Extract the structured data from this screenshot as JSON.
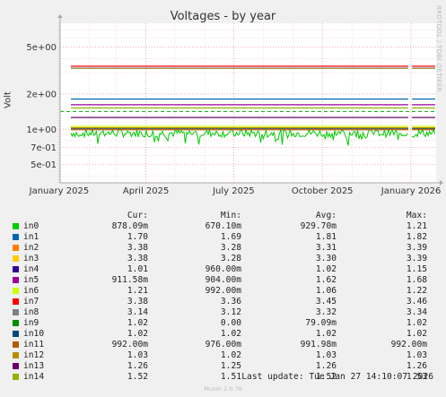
{
  "chart_data": {
    "type": "line",
    "title": "Voltages - by year",
    "ylabel": "Volt",
    "y_scale": "log",
    "yticks": [
      {
        "value": 5,
        "label": "5e+00"
      },
      {
        "value": 2,
        "label": "2e+00"
      },
      {
        "value": 1,
        "label": "1e+00"
      },
      {
        "value": 0.7,
        "label": "7e-01"
      },
      {
        "value": 0.5,
        "label": "5e-01"
      }
    ],
    "xticks": [
      "January 2025",
      "April 2025",
      "July 2025",
      "October 2025",
      "January 2026"
    ],
    "x_range": [
      "2025-01-02",
      "2026-01-27"
    ],
    "y_range": [
      0.35,
      8.0
    ],
    "gap_start": "2025-12-29",
    "gap_end": "2026-01-02",
    "warning_line": 1.42,
    "grid": true,
    "columns": [
      "Cur:",
      "Min:",
      "Avg:",
      "Max:"
    ],
    "series": [
      {
        "name": "in0",
        "color": "#00cc00",
        "cur": "878.09m",
        "min": "670.10m",
        "avg": "929.70m",
        "max": "1.21",
        "level": 0.93,
        "noisy": true
      },
      {
        "name": "in1",
        "color": "#0066b3",
        "cur": "1.70",
        "min": "1.69",
        "avg": "1.81",
        "max": "1.82",
        "level": 1.81
      },
      {
        "name": "in2",
        "color": "#ff8000",
        "cur": "3.38",
        "min": "3.28",
        "avg": "3.31",
        "max": "3.39",
        "level": 3.31
      },
      {
        "name": "in3",
        "color": "#ffcc00",
        "cur": "3.38",
        "min": "3.28",
        "avg": "3.30",
        "max": "3.39",
        "level": 3.3
      },
      {
        "name": "in4",
        "color": "#330099",
        "cur": "1.01",
        "min": "960.00m",
        "avg": "1.02",
        "max": "1.15",
        "level": 1.02
      },
      {
        "name": "in5",
        "color": "#990099",
        "cur": "911.58m",
        "min": "904.00m",
        "avg": "1.62",
        "max": "1.68",
        "level": 1.62
      },
      {
        "name": "in6",
        "color": "#ccff00",
        "cur": "1.21",
        "min": "992.00m",
        "avg": "1.06",
        "max": "1.22",
        "level": 1.06
      },
      {
        "name": "in7",
        "color": "#ff0000",
        "cur": "3.38",
        "min": "3.36",
        "avg": "3.45",
        "max": "3.46",
        "level": 3.45
      },
      {
        "name": "in8",
        "color": "#808080",
        "cur": "3.14",
        "min": "3.12",
        "avg": "3.32",
        "max": "3.34",
        "level": 3.32
      },
      {
        "name": "in9",
        "color": "#008f00",
        "cur": "1.02",
        "min": "0.00",
        "avg": "79.09m",
        "max": "1.02",
        "level": 1.02,
        "only_end": true
      },
      {
        "name": "in10",
        "color": "#00487d",
        "cur": "1.02",
        "min": "1.02",
        "avg": "1.02",
        "max": "1.02",
        "level": 1.02
      },
      {
        "name": "in11",
        "color": "#b35a00",
        "cur": "992.00m",
        "min": "976.00m",
        "avg": "991.98m",
        "max": "992.00m",
        "level": 0.992
      },
      {
        "name": "in12",
        "color": "#b38f00",
        "cur": "1.03",
        "min": "1.02",
        "avg": "1.03",
        "max": "1.03",
        "level": 1.03
      },
      {
        "name": "in13",
        "color": "#6b006b",
        "cur": "1.26",
        "min": "1.25",
        "avg": "1.26",
        "max": "1.26",
        "level": 1.26
      },
      {
        "name": "in14",
        "color": "#8fb300",
        "cur": "1.52",
        "min": "1.51",
        "avg": "1.52",
        "max": "1.53",
        "level": 1.52
      }
    ]
  },
  "side_text": "RRDTOOL / TOBI OETIKER",
  "last_update": "Last update: Tue Jan 27 14:10:07 2026",
  "footer": "Munin 2.0.76"
}
